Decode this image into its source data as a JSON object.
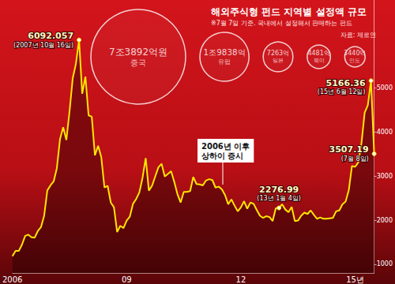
{
  "chart_data": {
    "type": "line",
    "title": "해외주식형 펀드 지역별 설정액 규모",
    "subtitle": "※7월 7일 기준. 국내에서 설정해서 판매하는 펀드",
    "source": "자료: 제로인",
    "categories": [
      "2006",
      null,
      null,
      null,
      null,
      null,
      null,
      null,
      null,
      null,
      null,
      null,
      null,
      null,
      null,
      null,
      null,
      null,
      null,
      null,
      null,
      null,
      null,
      null,
      null,
      null,
      null,
      null,
      null,
      null,
      null,
      null,
      null,
      null,
      null,
      null,
      "09",
      null,
      null,
      null,
      null,
      null,
      null,
      null,
      null,
      null,
      null,
      null,
      null,
      null,
      null,
      null,
      null,
      null,
      null,
      null,
      null,
      null,
      null,
      null,
      null,
      null,
      null,
      null,
      null,
      null,
      null,
      null,
      null,
      null,
      null,
      null,
      "12",
      null,
      null,
      null,
      null,
      null,
      null,
      null,
      null,
      null,
      null,
      null,
      null,
      null,
      null,
      null,
      null,
      null,
      null,
      null,
      null,
      null,
      null,
      null,
      null,
      null,
      null,
      null,
      null,
      null,
      null,
      null,
      null,
      null,
      null,
      null,
      "15년",
      null,
      null,
      null,
      null,
      null,
      null
    ],
    "series": [
      {
        "name": "2006년 이후\n상하이 증시",
        "color": "#ffe600",
        "values": [
          1180,
          1300,
          1300,
          1440,
          1640,
          1670,
          1610,
          1600,
          1750,
          1840,
          2100,
          2675,
          2790,
          2880,
          3180,
          3840,
          4110,
          3820,
          4470,
          5220,
          5550,
          6092.057,
          4870,
          5260,
          4380,
          4350,
          3470,
          3690,
          3430,
          2740,
          2780,
          2400,
          2290,
          1730,
          1870,
          1820,
          1990,
          2080,
          2370,
          2480,
          2630,
          2960,
          3410,
          2670,
          2780,
          2990,
          3200,
          3280,
          2990,
          3050,
          3110,
          2870,
          2590,
          2400,
          2640,
          2640,
          2660,
          2980,
          2820,
          2810,
          2790,
          2900,
          2930,
          2910,
          2740,
          2760,
          2700,
          2570,
          2360,
          2470,
          2330,
          2200,
          2290,
          2430,
          2260,
          2400,
          2370,
          2230,
          2100,
          2050,
          2090,
          2070,
          1980,
          2270,
          2276.99,
          2360,
          2240,
          2180,
          2300,
          1980,
          1990,
          2100,
          2170,
          2140,
          2220,
          2120,
          2030,
          2060,
          2030,
          2030,
          2040,
          2050,
          2200,
          2220,
          2360,
          2420,
          2680,
          3230,
          3210,
          3310,
          3750,
          4440,
          4610,
          5166.36,
          3507.19
        ]
      }
    ],
    "ylim": [
      800,
      7000
    ],
    "yticks": [
      1000,
      2000,
      3000,
      4000,
      5000
    ],
    "grid": false,
    "annotations": [
      {
        "value": 6092.057,
        "text": "(2007년 10월 16일)"
      },
      {
        "value": 2276.99,
        "text": "(13년 1월 4일)"
      },
      {
        "value": 5166.36,
        "text": "(15년 6월 12일)"
      },
      {
        "value": 3507.19,
        "text": "(7월 8일)"
      }
    ],
    "bubbles": [
      {
        "name": "중국",
        "value": 73892,
        "value_label": "7조3892억원"
      },
      {
        "name": "유럽",
        "value": 19838,
        "value_label": "1조9838억"
      },
      {
        "name": "일본",
        "value": 7263,
        "value_label": "7263억"
      },
      {
        "name": "북미",
        "value": 4481,
        "value_label": "4481억"
      },
      {
        "name": "인도",
        "value": 3440,
        "value_label": "3440억"
      }
    ]
  }
}
